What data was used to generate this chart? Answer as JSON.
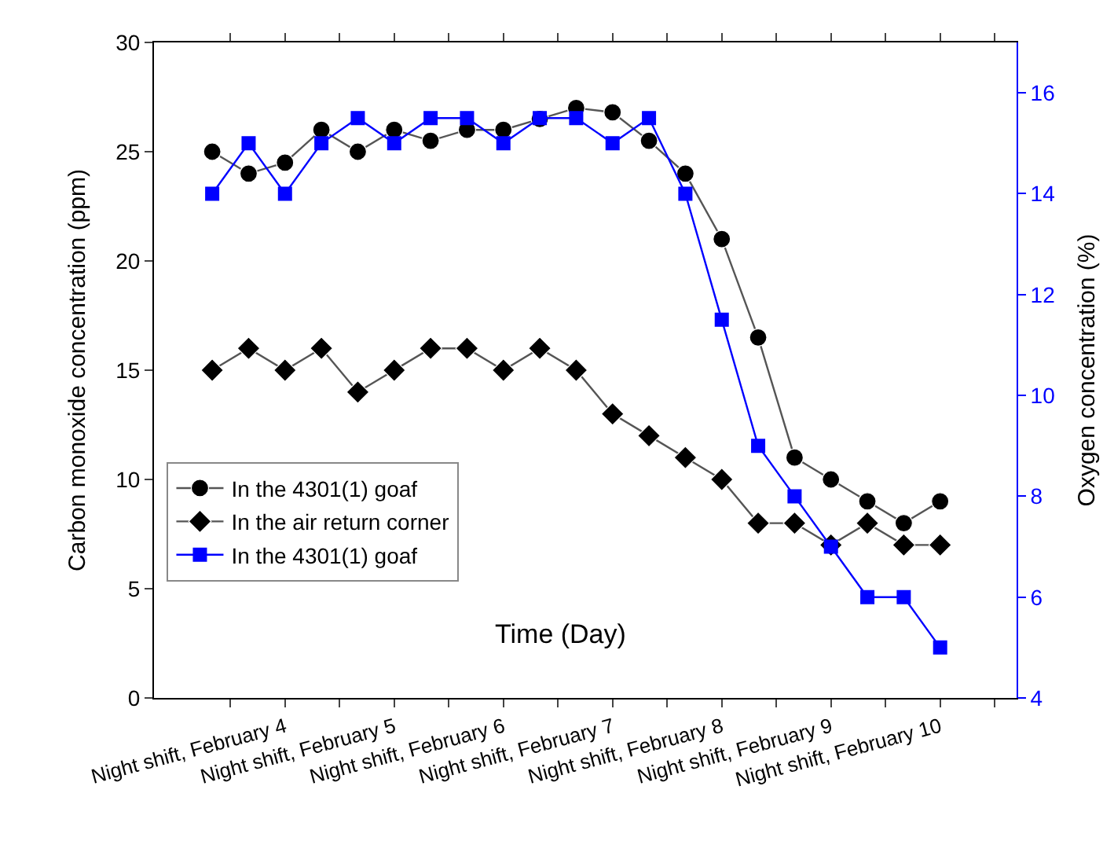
{
  "chart_data": {
    "type": "line",
    "xlabel": "Time (Day)",
    "ylabel": "Carbon monoxide concentration (ppm)",
    "y2label": "Oxygen concentration (%)",
    "categories": [
      null,
      null,
      "Night shift, February 4",
      null,
      null,
      "Night shift, February 5",
      null,
      null,
      "Night shift, February 6",
      null,
      null,
      "Night shift, February 7",
      null,
      null,
      "Night shift, February 8",
      null,
      null,
      "Night shift, February 9",
      null,
      null,
      "Night shift, February 10"
    ],
    "ylim": [
      0,
      30
    ],
    "yticks": [
      0,
      5,
      10,
      15,
      20,
      25,
      30
    ],
    "y2lim": [
      4,
      17
    ],
    "y2ticks": [
      4,
      6,
      8,
      10,
      12,
      14,
      16
    ],
    "legend": "left",
    "series": [
      {
        "name": "In the 4301(1) goaf",
        "color": "#000000",
        "marker": "circle",
        "values": [
          25,
          24,
          24.5,
          26,
          25,
          26,
          25.5,
          26,
          26,
          26.5,
          27,
          26.8,
          25.5,
          24,
          21,
          16.5,
          11,
          10,
          9,
          8,
          9
        ]
      },
      {
        "name": "In the air return corner",
        "color": "#000000",
        "marker": "diamond",
        "values": [
          15,
          16,
          15,
          16,
          14,
          15,
          16,
          16,
          15,
          16,
          15,
          13,
          12,
          11,
          10,
          8,
          8,
          7,
          8,
          7,
          7
        ]
      },
      {
        "name": "In the 4301(1) goaf",
        "color": "#0000ff",
        "marker": "square",
        "axis": "y2",
        "values": [
          14,
          15,
          14,
          15,
          15.5,
          15,
          15.5,
          15.5,
          15,
          15.5,
          15.5,
          15,
          15.5,
          14,
          11.5,
          9,
          8,
          7,
          6,
          6,
          5
        ]
      }
    ]
  }
}
